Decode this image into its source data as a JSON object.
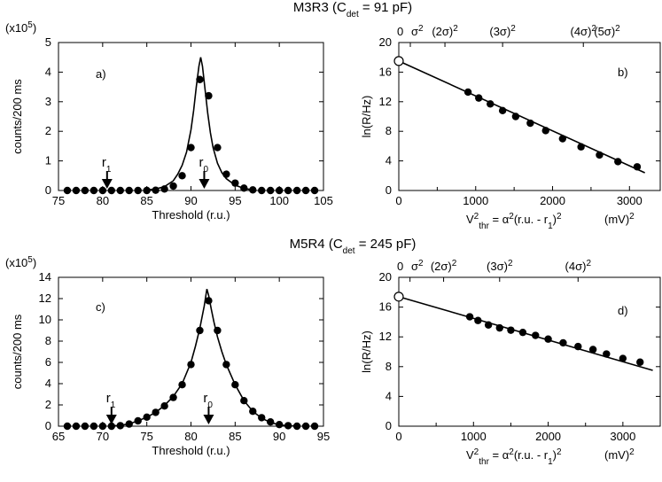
{
  "figure": {
    "colors": {
      "ink": "#000000",
      "background": "#ffffff",
      "open_marker_fill": "#ffffff"
    }
  },
  "chart_data": [
    {
      "id": "a",
      "type": "scatter",
      "group_title": "M3R3 (C",
      "group_title_sub": "det",
      "group_title_tail": " = 91 pF)",
      "panel_label": "a)",
      "scale_label": "(x10",
      "scale_label_sup": "5",
      "scale_label_tail": ")",
      "xlabel": "Threshold  (r.u.)",
      "ylabel": "counts/200 ms",
      "xlim": [
        75,
        105
      ],
      "ylim": [
        0,
        5
      ],
      "x_ticks": [
        75,
        80,
        85,
        90,
        95,
        100,
        105
      ],
      "y_ticks": [
        0,
        1,
        2,
        3,
        4,
        5
      ],
      "points": {
        "x": [
          76,
          77,
          78,
          79,
          80,
          81,
          82,
          83,
          84,
          85,
          86,
          87,
          88,
          89,
          90,
          91,
          92,
          93,
          94,
          95,
          96,
          97,
          98,
          99,
          100,
          101,
          102,
          103,
          104
        ],
        "y": [
          0,
          0,
          0,
          0,
          0,
          0,
          0,
          0,
          0,
          0,
          0.01,
          0.05,
          0.15,
          0.5,
          1.45,
          3.75,
          3.2,
          1.45,
          0.55,
          0.25,
          0.08,
          0.02,
          0,
          0,
          0,
          0,
          0,
          0,
          0
        ]
      },
      "fit": {
        "x": [
          85,
          86,
          87,
          88,
          88.5,
          89,
          89.5,
          90,
          90.3,
          90.6,
          90.9,
          91.1,
          91.3,
          91.6,
          91.9,
          92.2,
          92.5,
          93,
          93.5,
          94,
          95,
          96,
          97
        ],
        "y": [
          0.02,
          0.05,
          0.13,
          0.33,
          0.55,
          0.85,
          1.3,
          2.05,
          2.7,
          3.5,
          4.2,
          4.5,
          4.2,
          3.4,
          2.6,
          1.95,
          1.45,
          0.92,
          0.6,
          0.4,
          0.18,
          0.07,
          0.02
        ]
      },
      "markers": [
        {
          "label": "r",
          "sub": "1",
          "x": 80.5
        },
        {
          "label": "r",
          "sub": "0",
          "x": 91.5
        }
      ]
    },
    {
      "id": "b",
      "type": "scatter",
      "panel_label": "b)",
      "xlabel_main": "V",
      "xlabel_sup": "2",
      "xlabel_sub": "thr",
      "xlabel_mid": " = α",
      "xlabel_mid_sup": "2",
      "xlabel_paren": "(r.u. - r",
      "xlabel_paren_sub": "1",
      "xlabel_paren_end": ")",
      "xlabel_paren_sup": "2",
      "xlabel_unit": "(mV)",
      "xlabel_unit_sup": "2",
      "ylabel": "ln(R/Hz)",
      "xlim": [
        0,
        3400
      ],
      "ylim": [
        0,
        20
      ],
      "x_ticks": [
        0,
        1000,
        2000,
        3000
      ],
      "x_tick_labels": [
        "0",
        "1000",
        "2000",
        "3000"
      ],
      "x_minor_ticks": [
        500,
        1500,
        2500
      ],
      "y_ticks": [
        0,
        4,
        8,
        12,
        16,
        20
      ],
      "top_ticks": [
        {
          "x": 0,
          "label": "0",
          "sup": ""
        },
        {
          "x": 150,
          "label": "σ",
          "sup": "2"
        },
        {
          "x": 600,
          "label": "(2σ)",
          "sup": "2"
        },
        {
          "x": 1350,
          "label": "(3σ)",
          "sup": "2"
        },
        {
          "x": 2400,
          "label": "(4σ)",
          "sup": "2"
        },
        {
          "x": 3750,
          "label": "(5σ)",
          "sup": "2"
        }
      ],
      "open_point": {
        "x": 0,
        "y": 17.5
      },
      "points": {
        "x": [
          900,
          1040,
          1190,
          1350,
          1520,
          1710,
          1910,
          2130,
          2370,
          2610,
          2850,
          3100
        ],
        "y": [
          13.3,
          12.5,
          11.7,
          10.8,
          10.0,
          9.1,
          8.1,
          7.0,
          5.9,
          4.8,
          3.9,
          3.2
        ]
      },
      "fit": {
        "x": [
          0,
          3200
        ],
        "y": [
          17.5,
          2.4
        ]
      }
    },
    {
      "id": "c",
      "type": "scatter",
      "group_title": "M5R4 (C",
      "group_title_sub": "det",
      "group_title_tail": " = 245 pF)",
      "panel_label": "c)",
      "scale_label": "(x10",
      "scale_label_sup": "5",
      "scale_label_tail": ")",
      "xlabel": "Threshold  (r.u.)",
      "ylabel": "counts/200 ms",
      "xlim": [
        65,
        95
      ],
      "ylim": [
        0,
        14
      ],
      "x_ticks": [
        65,
        70,
        75,
        80,
        85,
        90,
        95
      ],
      "y_ticks": [
        0,
        2,
        4,
        6,
        8,
        10,
        12,
        14
      ],
      "points": {
        "x": [
          66,
          67,
          68,
          69,
          70,
          71,
          72,
          73,
          74,
          75,
          76,
          77,
          78,
          79,
          80,
          81,
          82,
          83,
          84,
          85,
          86,
          87,
          88,
          89,
          90,
          91,
          92,
          93,
          94
        ],
        "y": [
          0,
          0,
          0,
          0,
          0,
          0,
          0.05,
          0.2,
          0.5,
          0.85,
          1.3,
          1.9,
          2.7,
          3.9,
          5.8,
          9.0,
          11.8,
          9.0,
          5.8,
          3.9,
          2.4,
          1.4,
          0.8,
          0.4,
          0.15,
          0.05,
          0,
          0,
          0
        ]
      },
      "fit": {
        "x": [
          71,
          72,
          73,
          74,
          75,
          76,
          77,
          78,
          79,
          80,
          80.5,
          81,
          81.5,
          81.8,
          82,
          82.3,
          82.6,
          83,
          83.5,
          84,
          85,
          86,
          87,
          88,
          89,
          90,
          91,
          92
        ],
        "y": [
          0.02,
          0.08,
          0.22,
          0.5,
          0.85,
          1.3,
          1.95,
          2.8,
          4.0,
          6.0,
          7.5,
          9.2,
          11.3,
          12.9,
          12.3,
          11.0,
          9.8,
          8.4,
          7.0,
          5.8,
          3.9,
          2.4,
          1.4,
          0.75,
          0.35,
          0.12,
          0.04,
          0.01
        ]
      },
      "markers": [
        {
          "label": "r",
          "sub": "1",
          "x": 71
        },
        {
          "label": "r",
          "sub": "0",
          "x": 82
        }
      ]
    },
    {
      "id": "d",
      "type": "scatter",
      "panel_label": "d)",
      "xlabel_main": "V",
      "xlabel_sup": "2",
      "xlabel_sub": "thr",
      "xlabel_mid": " = α",
      "xlabel_mid_sup": "2",
      "xlabel_paren": "(r.u. - r",
      "xlabel_paren_sub": "1",
      "xlabel_paren_end": ")",
      "xlabel_paren_sup": "2",
      "xlabel_unit": "(mV)",
      "xlabel_unit_sup": "2",
      "ylabel": "ln(R/Hz)",
      "xlim": [
        0,
        3500
      ],
      "ylim": [
        0,
        20
      ],
      "x_ticks": [
        0,
        1000,
        2000,
        3000
      ],
      "x_tick_labels": [
        "0",
        "1000",
        "2000",
        "3000"
      ],
      "x_minor_ticks": [
        500,
        1500,
        2500
      ],
      "y_ticks": [
        0,
        4,
        8,
        12,
        16,
        20
      ],
      "top_ticks": [
        {
          "x": 0,
          "label": "0",
          "sup": ""
        },
        {
          "x": 150,
          "label": "σ",
          "sup": "2"
        },
        {
          "x": 600,
          "label": "(2σ)",
          "sup": "2"
        },
        {
          "x": 1350,
          "label": "(3σ)",
          "sup": "2"
        },
        {
          "x": 2400,
          "label": "(4σ)",
          "sup": "2"
        }
      ],
      "open_point": {
        "x": 0,
        "y": 17.4
      },
      "points": {
        "x": [
          950,
          1060,
          1200,
          1350,
          1500,
          1660,
          1830,
          2000,
          2200,
          2400,
          2600,
          2780,
          3000,
          3230
        ],
        "y": [
          14.7,
          14.2,
          13.6,
          13.2,
          12.9,
          12.6,
          12.2,
          11.7,
          11.2,
          10.7,
          10.3,
          9.7,
          9.1,
          8.6
        ]
      },
      "fit": {
        "x": [
          0,
          3400
        ],
        "y": [
          17.4,
          7.5
        ]
      }
    }
  ]
}
